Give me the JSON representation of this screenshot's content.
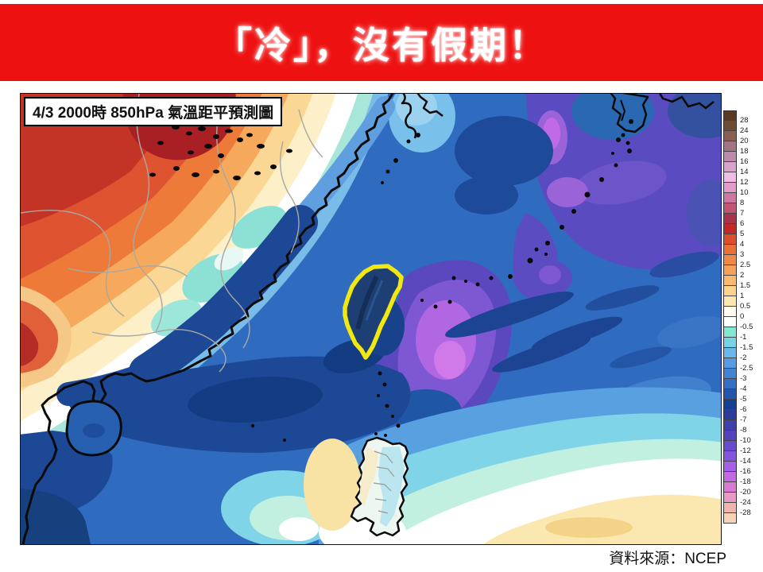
{
  "banner": {
    "title": "「冷」，沒有假期！",
    "bg_color": "#ee1111",
    "text_color": "#ffffff"
  },
  "map": {
    "label": "4/3 2000時 850hPa 氣溫距平預測圖",
    "taiwan_outline_color": "#f2e811"
  },
  "source": {
    "text": "資料來源：NCEP"
  },
  "colorbar": {
    "labels": [
      "28",
      "24",
      "20",
      "18",
      "16",
      "14",
      "12",
      "10",
      "8",
      "7",
      "6",
      "5",
      "4",
      "3",
      "2.5",
      "2",
      "1.5",
      "1",
      "0.5",
      "0",
      "-0.5",
      "-1",
      "-1.5",
      "-2",
      "-2.5",
      "-3",
      "-4",
      "-5",
      "-6",
      "-7",
      "-8",
      "-10",
      "-12",
      "-14",
      "-16",
      "-18",
      "-20",
      "-24",
      "-28"
    ],
    "band_colors": [
      "#5a3b26",
      "#6f4c34",
      "#8a5f52",
      "#a37481",
      "#bd8aa9",
      "#d8a3cb",
      "#f0bce5",
      "#e39cc9",
      "#cf77a0",
      "#c25574",
      "#a93349",
      "#c52828",
      "#dd4f2b",
      "#ea6f38",
      "#f18847",
      "#f5a159",
      "#f9ba70",
      "#fcd28d",
      "#fde7b0",
      "#fffbee",
      "#ffffff",
      "#82e8d2",
      "#76d4e4",
      "#6ab8ea",
      "#579ce2",
      "#4384d2",
      "#3370c4",
      "#2356ae",
      "#153f94",
      "#2b3b9b",
      "#3f3fae",
      "#5343bd",
      "#684ccf",
      "#8354dd",
      "#a75ee8",
      "#c469e4",
      "#d77bd2",
      "#e79bc4",
      "#f0b5ab",
      "#f7d2b4"
    ]
  },
  "chart_data": {
    "type": "heatmap",
    "title": "4/3 2000時 850hPa 氣溫距平預測圖",
    "slide_title": "「冷」，沒有假期！",
    "variable": "850hPa temperature anomaly (°C)",
    "valid_time": "4/3 2000時",
    "source": "NCEP",
    "colorbar_levels": [
      28,
      24,
      20,
      18,
      16,
      14,
      12,
      10,
      8,
      7,
      6,
      5,
      4,
      3,
      2.5,
      2,
      1.5,
      1,
      0.5,
      0,
      -0.5,
      -1,
      -1.5,
      -2,
      -2.5,
      -3,
      -4,
      -5,
      -6,
      -7,
      -8,
      -10,
      -12,
      -14,
      -16,
      -18,
      -20,
      -24,
      -28
    ],
    "legend_position": "right",
    "regions": [
      {
        "area": "NW inland China (upper-left)",
        "anomaly_c": "+3 to +7"
      },
      {
        "area": "SE China coastal inland band",
        "anomaly_c": "0 to -2"
      },
      {
        "area": "Taiwan (yellow outline)",
        "anomaly_c": "-5 to -7"
      },
      {
        "area": "Sea east / southeast of Taiwan (purple core)",
        "anomaly_c": "-8 to -16"
      },
      {
        "area": "Ryukyu islands / NW Pacific (upper-right)",
        "anomaly_c": "-7 to -14"
      },
      {
        "area": "South China Sea / Hainan",
        "anomaly_c": "-3 to -5"
      },
      {
        "area": "Luzon, Philippines (bottom)",
        "anomaly_c": "0 to -1.5"
      },
      {
        "area": "Far southern sea (bottom edge)",
        "anomaly_c": "0 to +1"
      }
    ]
  }
}
